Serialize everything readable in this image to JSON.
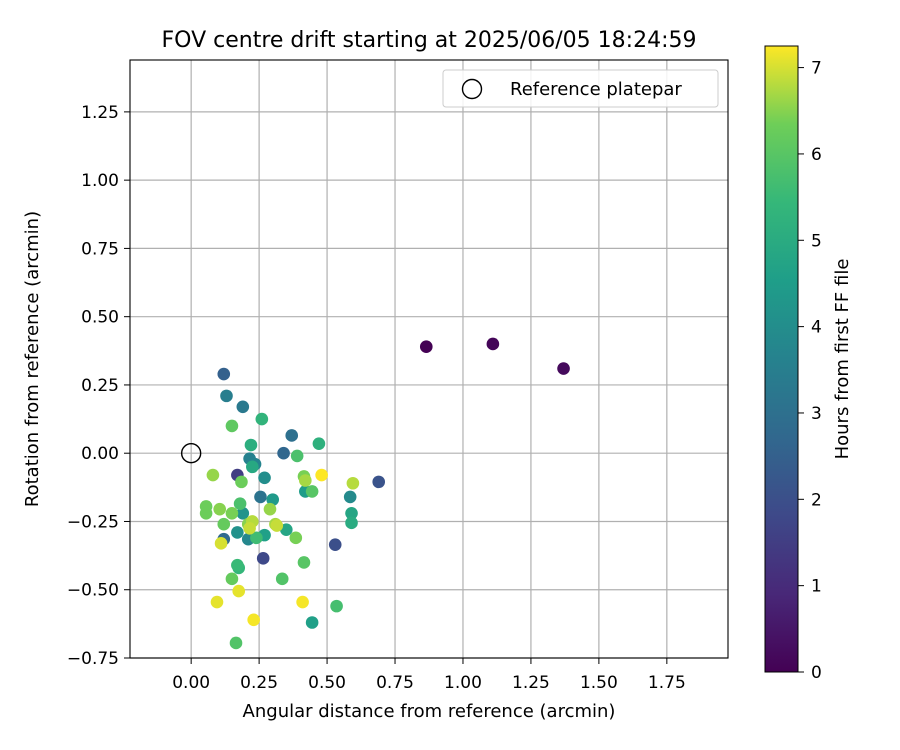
{
  "chart_data": {
    "type": "scatter",
    "title": "FOV centre drift starting at 2025/06/05 18:24:59",
    "xlabel": "Angular distance from reference (arcmin)",
    "ylabel": "Rotation from reference (arcmin)",
    "xlim": [
      -0.225,
      1.975
    ],
    "ylim": [
      -0.75,
      1.44
    ],
    "xticks": [
      "0.00",
      "0.25",
      "0.50",
      "0.75",
      "1.00",
      "1.25",
      "1.50",
      "1.75"
    ],
    "yticks": [
      "−0.75",
      "−0.50",
      "−0.25",
      "0.00",
      "0.25",
      "0.50",
      "0.75",
      "1.00",
      "1.25"
    ],
    "grid": true,
    "legend": {
      "position": "top-right",
      "label": "Reference platepar"
    },
    "reference_point": {
      "x": 0.0,
      "y": 0.0
    },
    "colorbar": {
      "label": "Hours from first FF file",
      "colormap": "viridis",
      "range": [
        0,
        7.25
      ],
      "ticks": [
        "0",
        "1",
        "2",
        "3",
        "4",
        "5",
        "6",
        "7"
      ]
    },
    "points": [
      {
        "x": 0.865,
        "y": 0.39,
        "hours": 0.0
      },
      {
        "x": 1.11,
        "y": 0.4,
        "hours": 0.1
      },
      {
        "x": 1.37,
        "y": 0.31,
        "hours": 0.2
      },
      {
        "x": 0.17,
        "y": -0.08,
        "hours": 1.5
      },
      {
        "x": 0.265,
        "y": -0.385,
        "hours": 1.8
      },
      {
        "x": 0.53,
        "y": -0.335,
        "hours": 2.0
      },
      {
        "x": 0.69,
        "y": -0.105,
        "hours": 2.1
      },
      {
        "x": 0.12,
        "y": 0.29,
        "hours": 2.5
      },
      {
        "x": 0.34,
        "y": 0.0,
        "hours": 2.7
      },
      {
        "x": 0.37,
        "y": 0.065,
        "hours": 3.0
      },
      {
        "x": 0.12,
        "y": -0.315,
        "hours": 2.8
      },
      {
        "x": 0.255,
        "y": -0.16,
        "hours": 3.1
      },
      {
        "x": 0.19,
        "y": 0.17,
        "hours": 3.3
      },
      {
        "x": 0.13,
        "y": 0.21,
        "hours": 3.5
      },
      {
        "x": 0.215,
        "y": -0.02,
        "hours": 3.6
      },
      {
        "x": 0.235,
        "y": -0.04,
        "hours": 3.7
      },
      {
        "x": 0.21,
        "y": -0.315,
        "hours": 3.8
      },
      {
        "x": 0.585,
        "y": -0.16,
        "hours": 3.9
      },
      {
        "x": 0.27,
        "y": -0.09,
        "hours": 4.0
      },
      {
        "x": 0.17,
        "y": -0.29,
        "hours": 4.1
      },
      {
        "x": 0.19,
        "y": -0.22,
        "hours": 4.2
      },
      {
        "x": 0.3,
        "y": -0.17,
        "hours": 4.4
      },
      {
        "x": 0.42,
        "y": -0.14,
        "hours": 4.5
      },
      {
        "x": 0.445,
        "y": -0.62,
        "hours": 4.6
      },
      {
        "x": 0.27,
        "y": -0.3,
        "hours": 4.6
      },
      {
        "x": 0.59,
        "y": -0.22,
        "hours": 4.8
      },
      {
        "x": 0.225,
        "y": -0.05,
        "hours": 4.9
      },
      {
        "x": 0.35,
        "y": -0.28,
        "hours": 4.8
      },
      {
        "x": 0.59,
        "y": -0.255,
        "hours": 5.0
      },
      {
        "x": 0.22,
        "y": 0.03,
        "hours": 5.1
      },
      {
        "x": 0.47,
        "y": 0.035,
        "hours": 5.2
      },
      {
        "x": 0.26,
        "y": 0.125,
        "hours": 5.3
      },
      {
        "x": 0.175,
        "y": -0.42,
        "hours": 5.4
      },
      {
        "x": 0.17,
        "y": -0.41,
        "hours": 5.5
      },
      {
        "x": 0.24,
        "y": -0.31,
        "hours": 5.6
      },
      {
        "x": 0.535,
        "y": -0.56,
        "hours": 5.7
      },
      {
        "x": 0.39,
        "y": -0.01,
        "hours": 5.8
      },
      {
        "x": 0.18,
        "y": -0.185,
        "hours": 5.8
      },
      {
        "x": 0.165,
        "y": -0.695,
        "hours": 5.9
      },
      {
        "x": 0.335,
        "y": -0.46,
        "hours": 5.9
      },
      {
        "x": 0.415,
        "y": -0.4,
        "hours": 6.0
      },
      {
        "x": 0.445,
        "y": -0.14,
        "hours": 6.0
      },
      {
        "x": 0.15,
        "y": 0.1,
        "hours": 6.1
      },
      {
        "x": 0.12,
        "y": -0.26,
        "hours": 6.2
      },
      {
        "x": 0.15,
        "y": -0.46,
        "hours": 6.2
      },
      {
        "x": 0.055,
        "y": -0.22,
        "hours": 6.3
      },
      {
        "x": 0.055,
        "y": -0.195,
        "hours": 6.3
      },
      {
        "x": 0.185,
        "y": -0.105,
        "hours": 6.3
      },
      {
        "x": 0.385,
        "y": -0.31,
        "hours": 6.4
      },
      {
        "x": 0.415,
        "y": -0.085,
        "hours": 6.4
      },
      {
        "x": 0.15,
        "y": -0.22,
        "hours": 6.4
      },
      {
        "x": 0.21,
        "y": -0.26,
        "hours": 6.5
      },
      {
        "x": 0.105,
        "y": -0.205,
        "hours": 6.5
      },
      {
        "x": 0.29,
        "y": -0.205,
        "hours": 6.6
      },
      {
        "x": 0.08,
        "y": -0.08,
        "hours": 6.6
      },
      {
        "x": 0.42,
        "y": -0.1,
        "hours": 6.7
      },
      {
        "x": 0.31,
        "y": -0.26,
        "hours": 6.7
      },
      {
        "x": 0.595,
        "y": -0.11,
        "hours": 6.8
      },
      {
        "x": 0.225,
        "y": -0.25,
        "hours": 6.8
      },
      {
        "x": 0.315,
        "y": -0.265,
        "hours": 6.9
      },
      {
        "x": 0.215,
        "y": -0.275,
        "hours": 6.9
      },
      {
        "x": 0.11,
        "y": -0.33,
        "hours": 7.0
      },
      {
        "x": 0.095,
        "y": -0.545,
        "hours": 7.1
      },
      {
        "x": 0.175,
        "y": -0.505,
        "hours": 7.1
      },
      {
        "x": 0.23,
        "y": -0.61,
        "hours": 7.2
      },
      {
        "x": 0.41,
        "y": -0.545,
        "hours": 7.2
      },
      {
        "x": 0.48,
        "y": -0.08,
        "hours": 7.25
      }
    ]
  }
}
